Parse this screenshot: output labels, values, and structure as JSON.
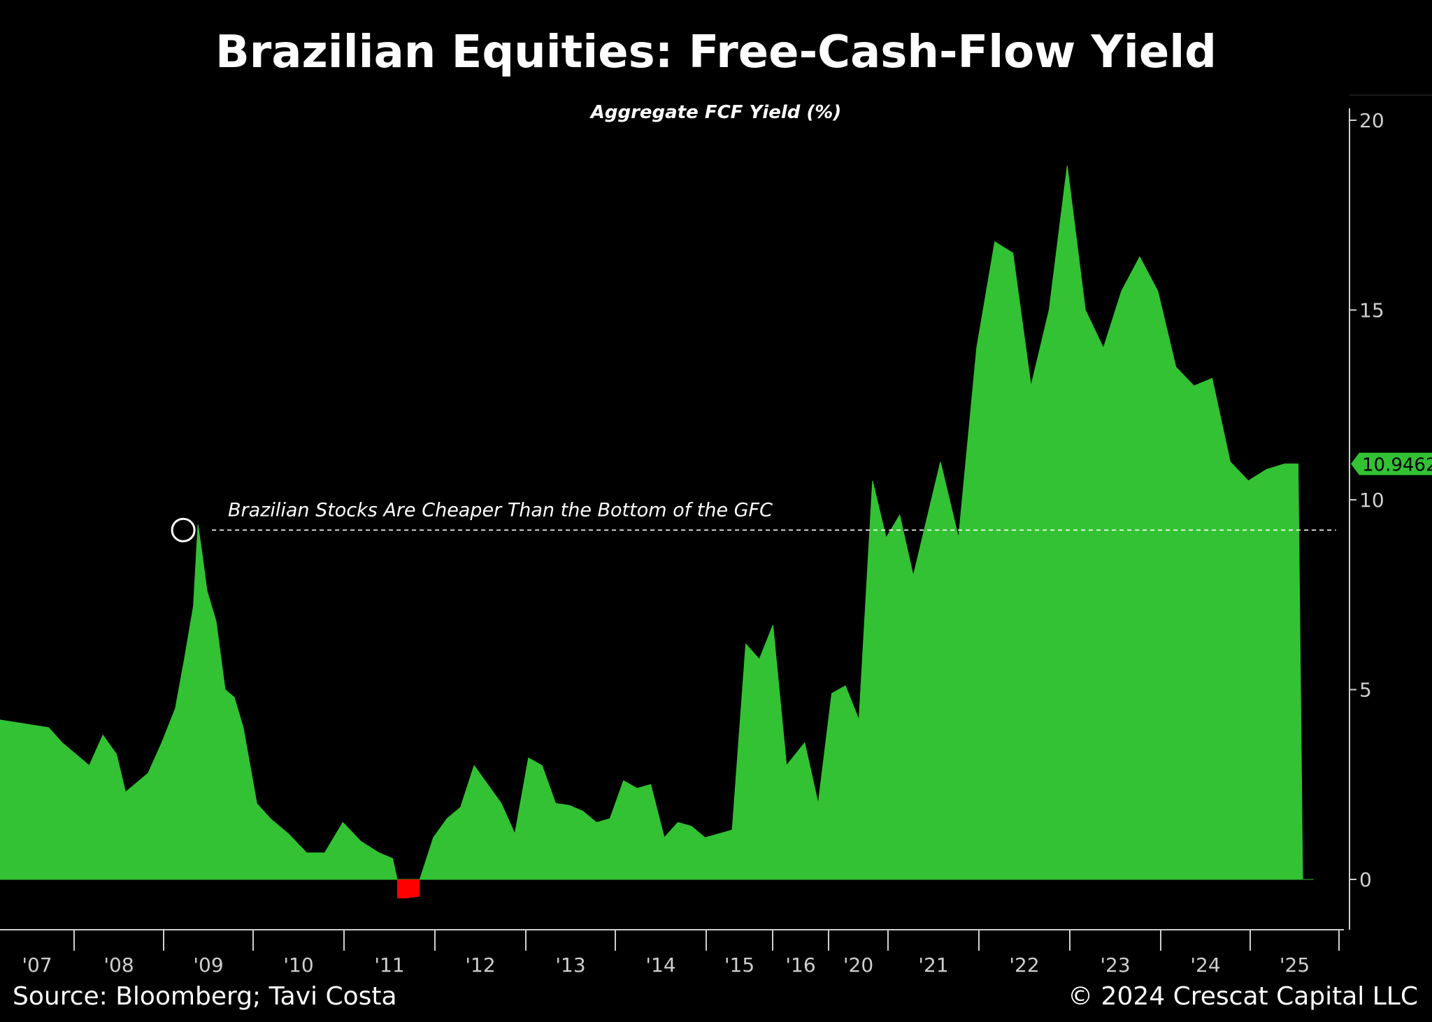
{
  "footer": {
    "source": "Source: Bloomberg; Tavi Costa",
    "copyright": "© 2024 Crescat Capital LLC"
  },
  "colors": {
    "background": "#000000",
    "positive_fill": "#33c233",
    "negative_fill": "#ff0000",
    "text": "#ffffff",
    "axis": "#cfcfcf"
  },
  "chart_data": {
    "type": "area",
    "title": "Brazilian Equities: Free-Cash-Flow Yield",
    "subtitle": "Aggregate FCF Yield (%)",
    "ylim": [
      -1.3,
      20.6
    ],
    "y_ticks": [
      0,
      5,
      10,
      15,
      20
    ],
    "y_axis_side": "right",
    "grid": false,
    "last_value_label": "10.9462",
    "x_tick_labels": [
      "'07",
      "'08",
      "'09",
      "'10",
      "'11",
      "'12",
      "'13",
      "'14",
      "'15",
      "'16",
      "'20",
      "'21",
      "'22",
      "'23",
      "'24",
      "'25"
    ],
    "x_axis_note": "Period positions; 2017-2019 not shown on axis (axis jumps from '16 to '20)",
    "annotation": {
      "text": "Brazilian Stocks Are Cheaper Than the Bottom of the GFC",
      "reference_level": 9.35,
      "from_period": 1.8,
      "to_period": 14.6
    },
    "series": [
      {
        "x": [
          0.0,
          0.15,
          0.3,
          0.45,
          0.6,
          0.75,
          0.9,
          1.0,
          1.1,
          1.25,
          1.4,
          1.55,
          1.65,
          1.75,
          1.8,
          1.85,
          1.9,
          2.0,
          2.1,
          2.2,
          2.3,
          2.45,
          2.6,
          2.8,
          3.0,
          3.2,
          3.4,
          3.6,
          3.8,
          3.95,
          4.0,
          4.1,
          4.25,
          4.4,
          4.55,
          4.7,
          4.85,
          5.0,
          5.15,
          5.3,
          5.45,
          5.6,
          5.75,
          5.9,
          6.05,
          6.2,
          6.35,
          6.5,
          6.65,
          6.8,
          6.95,
          7.1,
          7.25,
          7.4,
          7.55,
          7.7,
          7.85,
          8.0,
          8.15,
          8.3,
          8.5,
          8.65,
          8.8,
          8.95,
          9.1,
          9.25,
          9.4,
          9.55,
          9.7,
          9.85,
          10.0,
          10.2,
          10.4,
          10.6,
          10.8,
          11.0,
          11.2,
          11.4,
          11.6,
          11.8,
          12.0,
          12.2,
          12.4,
          12.6,
          12.8,
          13.0,
          13.2,
          13.4,
          13.6,
          13.8,
          13.95,
          14.0,
          14.07,
          14.12
        ],
        "values": [
          4.2,
          4.0,
          3.6,
          3.3,
          3.0,
          3.8,
          3.3,
          2.3,
          2.5,
          2.8,
          3.6,
          4.5,
          5.8,
          7.2,
          9.35,
          8.5,
          7.6,
          6.8,
          5.0,
          4.8,
          4.0,
          2.0,
          1.6,
          1.2,
          0.7,
          0.7,
          1.5,
          1.0,
          0.7,
          0.55,
          -0.5,
          -0.5,
          -0.45,
          1.1,
          1.6,
          1.9,
          3.0,
          2.5,
          2.0,
          1.2,
          3.2,
          3.0,
          2.0,
          1.95,
          1.8,
          1.5,
          1.6,
          2.6,
          2.4,
          2.5,
          1.1,
          1.5,
          1.4,
          1.1,
          1.2,
          1.3,
          6.2,
          5.8,
          6.7,
          3.0,
          3.6,
          2.0,
          4.9,
          5.1,
          4.2,
          10.5,
          9.0,
          9.6,
          8.0,
          9.5,
          11.0,
          9.0,
          14.0,
          16.8,
          16.5,
          13.0,
          15.0,
          18.8,
          15.0,
          14.0,
          15.5,
          16.4,
          15.5,
          13.5,
          13.0,
          13.2,
          11.0,
          10.5,
          10.8,
          10.9462,
          10.9462,
          0,
          0,
          0
        ]
      }
    ]
  }
}
